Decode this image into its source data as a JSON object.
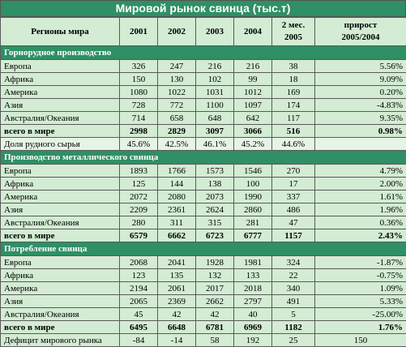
{
  "title": "Мировой рынок свинца (тыс.т)",
  "headers": {
    "region": "Регионы мира",
    "y2001": "2001",
    "y2002": "2002",
    "y2003": "2003",
    "y2004": "2004",
    "m2_line1": "2 мес.",
    "m2_line2": "2005",
    "growth_line1": "прирост",
    "growth_line2": "2005/2004"
  },
  "sections": [
    {
      "title": "Горнорудное производство",
      "rows": [
        {
          "name": "Европа",
          "v": [
            "326",
            "247",
            "216",
            "216",
            "38"
          ],
          "g": "5.56%",
          "type": "normal"
        },
        {
          "name": "Африка",
          "v": [
            "150",
            "130",
            "102",
            "99",
            "18"
          ],
          "g": "9.09%",
          "type": "normal"
        },
        {
          "name": "Америка",
          "v": [
            "1080",
            "1022",
            "1031",
            "1012",
            "169"
          ],
          "g": "0.20%",
          "type": "normal"
        },
        {
          "name": "Азия",
          "v": [
            "728",
            "772",
            "1100",
            "1097",
            "174"
          ],
          "g": "-4.83%",
          "type": "normal"
        },
        {
          "name": "Австралия/Океания",
          "v": [
            "714",
            "658",
            "648",
            "642",
            "117"
          ],
          "g": "9.35%",
          "type": "normal"
        },
        {
          "name": "всего в мире",
          "v": [
            "2998",
            "2829",
            "3097",
            "3066",
            "516"
          ],
          "g": "0.98%",
          "type": "total"
        },
        {
          "name": "Доля рудного сырья",
          "v": [
            "45.6%",
            "42.5%",
            "46.1%",
            "45.2%",
            "44.6%"
          ],
          "g": "",
          "type": "share"
        }
      ]
    },
    {
      "title": "Производство металлического свинца",
      "rows": [
        {
          "name": "Европа",
          "v": [
            "1893",
            "1766",
            "1573",
            "1546",
            "270"
          ],
          "g": "4.79%",
          "type": "normal"
        },
        {
          "name": "Африка",
          "v": [
            "125",
            "144",
            "138",
            "100",
            "17"
          ],
          "g": "2.00%",
          "type": "normal"
        },
        {
          "name": "Америка",
          "v": [
            "2072",
            "2080",
            "2073",
            "1990",
            "337"
          ],
          "g": "1.61%",
          "type": "normal"
        },
        {
          "name": "Азия",
          "v": [
            "2209",
            "2361",
            "2624",
            "2860",
            "486"
          ],
          "g": "1.96%",
          "type": "normal"
        },
        {
          "name": "Австралия/Океания",
          "v": [
            "280",
            "311",
            "315",
            "281",
            "47"
          ],
          "g": "0.36%",
          "type": "normal"
        },
        {
          "name": "всего в мире",
          "v": [
            "6579",
            "6662",
            "6723",
            "6777",
            "1157"
          ],
          "g": "2.43%",
          "type": "total"
        }
      ]
    },
    {
      "title": "Потребление свинца",
      "rows": [
        {
          "name": "Европа",
          "v": [
            "2068",
            "2041",
            "1928",
            "1981",
            "324"
          ],
          "g": "-1.87%",
          "type": "normal"
        },
        {
          "name": "Африка",
          "v": [
            "123",
            "135",
            "132",
            "133",
            "22"
          ],
          "g": "-0.75%",
          "type": "normal"
        },
        {
          "name": "Америка",
          "v": [
            "2194",
            "2061",
            "2017",
            "2018",
            "340"
          ],
          "g": "1.09%",
          "type": "normal"
        },
        {
          "name": "Азия",
          "v": [
            "2065",
            "2369",
            "2662",
            "2797",
            "491"
          ],
          "g": "5.33%",
          "type": "normal"
        },
        {
          "name": "Австралия/Океания",
          "v": [
            "45",
            "42",
            "42",
            "40",
            "5"
          ],
          "g": "-25.00%",
          "type": "normal"
        },
        {
          "name": "всего в мире",
          "v": [
            "6495",
            "6648",
            "6781",
            "6969",
            "1182"
          ],
          "g": "1.76%",
          "type": "total"
        },
        {
          "name": "Дефицит мирового рынка",
          "v": [
            "-84",
            "-14",
            "58",
            "192",
            "25"
          ],
          "g": "150",
          "type": "deficit"
        }
      ]
    }
  ]
}
